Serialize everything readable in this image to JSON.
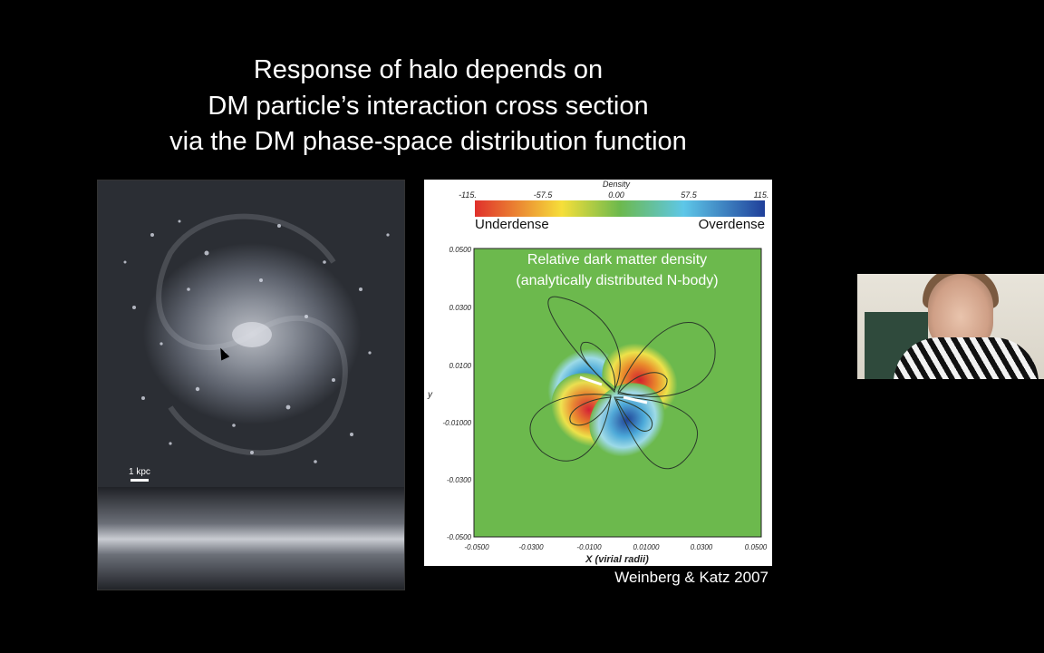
{
  "slide": {
    "title_lines": [
      "Response of halo depends on",
      "DM particle’s interaction cross section",
      "via the DM phase-space distribution function"
    ],
    "credit": "Weinberg & Katz 2007"
  },
  "galaxy_image": {
    "scale_label": "1 kpc"
  },
  "density_plot": {
    "colorbar_title": "Density",
    "colorbar_ticks": [
      "-115.",
      "-57.5",
      "0.00",
      "57.5",
      "115."
    ],
    "underdense_label": "Underdense",
    "overdense_label": "Overdense",
    "overlay_line1": "Relative dark matter density",
    "overlay_line2": "(analytically distributed N-body)",
    "y_ticks": [
      "0.0500",
      "0.0300",
      "0.0100",
      "-0.01000",
      "-0.0300",
      "-0.0500"
    ],
    "x_ticks": [
      "-0.0500",
      "-0.0300",
      "-0.0100",
      "0.01000",
      "0.0300",
      "0.0500"
    ],
    "x_label": "X (virial radii)",
    "y_label_fragment": "y",
    "colors": {
      "underdense": "#e0302b",
      "neutral": "#6cb94d",
      "overdense": "#1f3f9a"
    }
  },
  "webcam": {
    "description_icon": "presenter-video-icon"
  }
}
